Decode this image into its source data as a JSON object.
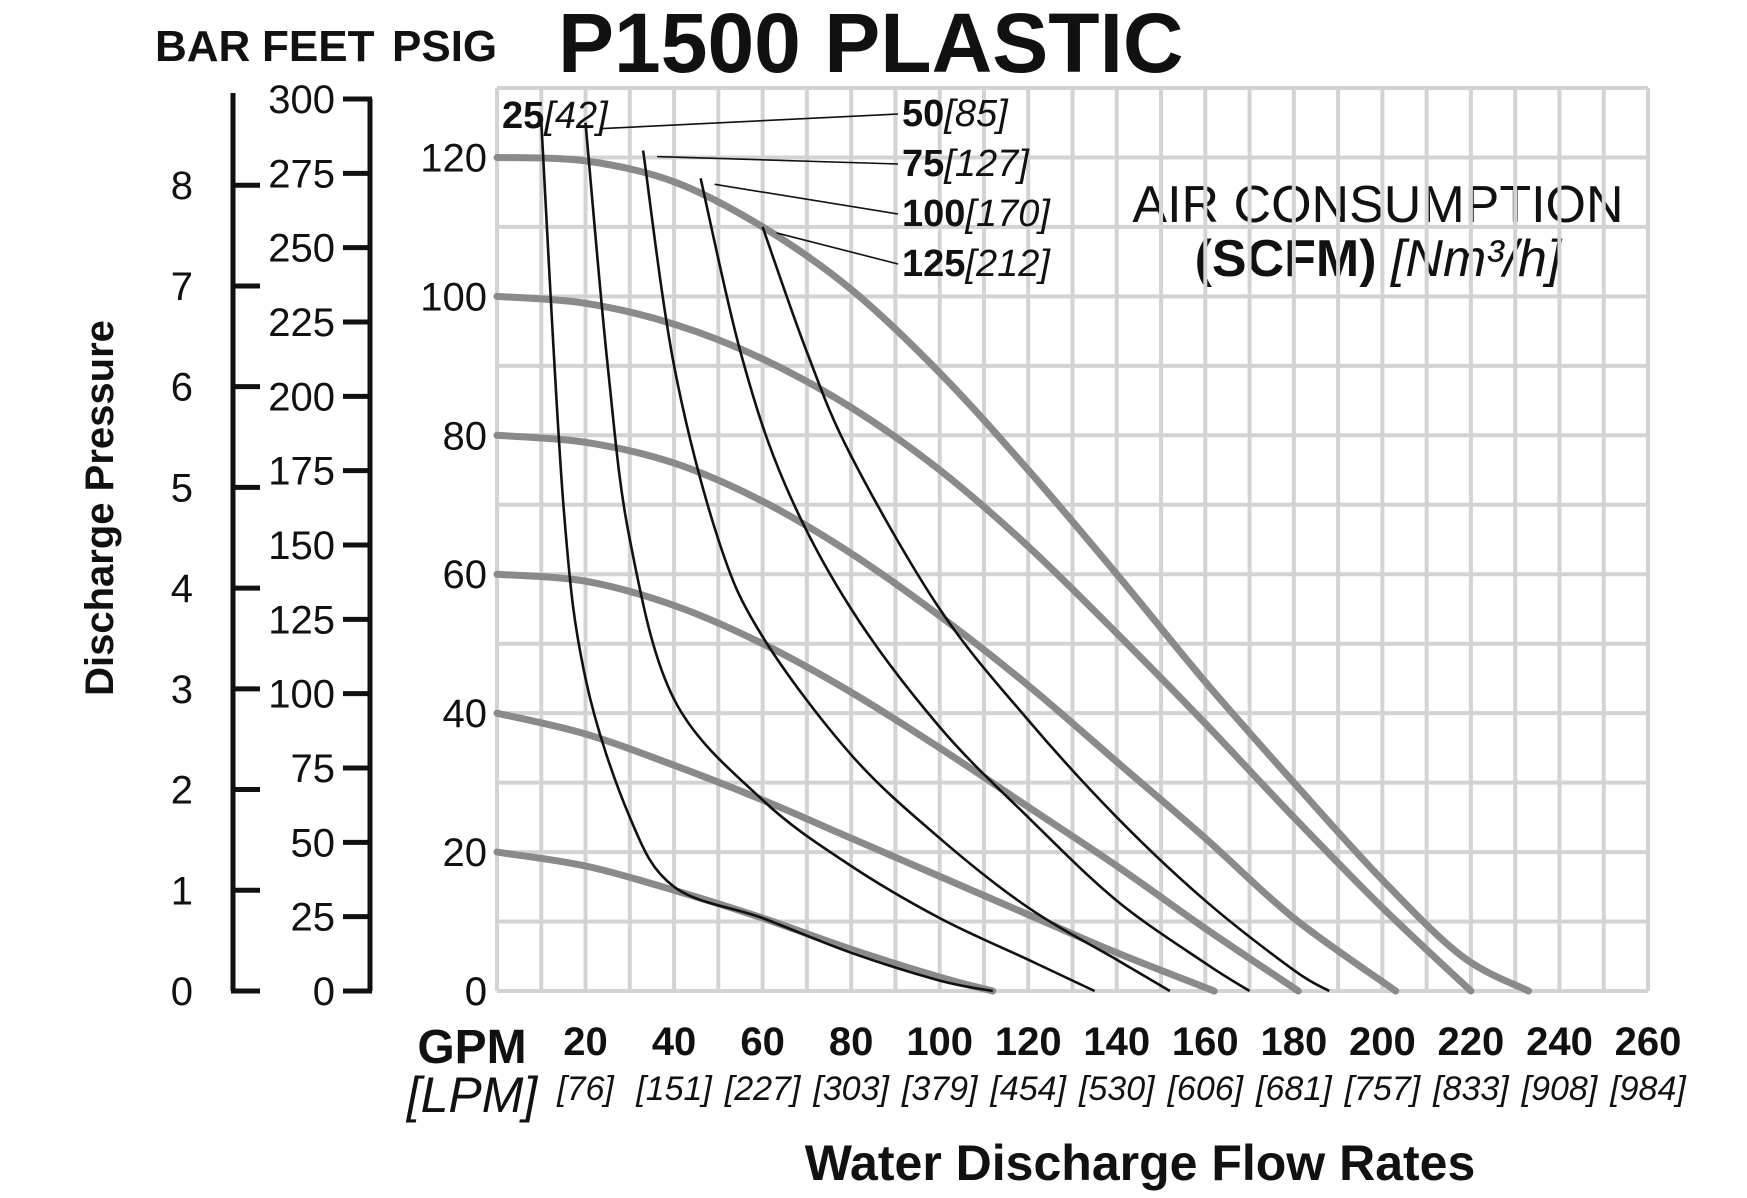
{
  "chart_data": {
    "type": "line",
    "title": "P1500 PLASTIC",
    "xlabel": "Water Discharge Flow Rates",
    "ylabel": "Discharge Pressure",
    "x_unit": "GPM",
    "x_unit_alt": "[LPM]",
    "xlim": [
      0,
      260
    ],
    "ylim": [
      0,
      130
    ],
    "x_ticks": [
      {
        "gpm": "20",
        "lpm": "[76]"
      },
      {
        "gpm": "40",
        "lpm": "[151]"
      },
      {
        "gpm": "60",
        "lpm": "[227]"
      },
      {
        "gpm": "80",
        "lpm": "[303]"
      },
      {
        "gpm": "100",
        "lpm": "[379]"
      },
      {
        "gpm": "120",
        "lpm": "[454]"
      },
      {
        "gpm": "140",
        "lpm": "[530]"
      },
      {
        "gpm": "160",
        "lpm": "[606]"
      },
      {
        "gpm": "180",
        "lpm": "[681]"
      },
      {
        "gpm": "200",
        "lpm": "[757]"
      },
      {
        "gpm": "220",
        "lpm": "[833]"
      },
      {
        "gpm": "240",
        "lpm": "[908]"
      },
      {
        "gpm": "260",
        "lpm": "[984]"
      }
    ],
    "psig_ticks": [
      "0",
      "20",
      "40",
      "60",
      "80",
      "100",
      "120"
    ],
    "feet_axis": {
      "label": "FEET",
      "ticks": [
        "0",
        "25",
        "50",
        "75",
        "100",
        "125",
        "150",
        "175",
        "200",
        "225",
        "250",
        "275",
        "300"
      ]
    },
    "bar_axis": {
      "label": "BAR",
      "ticks": [
        "0",
        "1",
        "2",
        "3",
        "4",
        "5",
        "6",
        "7",
        "8"
      ]
    },
    "psig_label": "PSIG",
    "grid": true,
    "performance_curves": {
      "description_label": "",
      "series": [
        {
          "inlet_psig": 20,
          "points": [
            [
              0,
              20
            ],
            [
              20,
              18
            ],
            [
              40,
              14.5
            ],
            [
              60,
              10.5
            ],
            [
              80,
              6
            ],
            [
              100,
              2
            ],
            [
              112,
              0
            ]
          ]
        },
        {
          "inlet_psig": 40,
          "points": [
            [
              0,
              40
            ],
            [
              20,
              37
            ],
            [
              40,
              32.5
            ],
            [
              60,
              27.5
            ],
            [
              80,
              22
            ],
            [
              100,
              16.5
            ],
            [
              120,
              11
            ],
            [
              140,
              5.5
            ],
            [
              162,
              0
            ]
          ]
        },
        {
          "inlet_psig": 60,
          "points": [
            [
              0,
              60
            ],
            [
              20,
              59
            ],
            [
              40,
              55.5
            ],
            [
              60,
              50
            ],
            [
              80,
              43
            ],
            [
              100,
              35
            ],
            [
              120,
              26.5
            ],
            [
              140,
              18
            ],
            [
              160,
              9
            ],
            [
              181,
              0
            ]
          ]
        },
        {
          "inlet_psig": 80,
          "points": [
            [
              0,
              80
            ],
            [
              20,
              79
            ],
            [
              40,
              76
            ],
            [
              60,
              70.5
            ],
            [
              80,
              63
            ],
            [
              100,
              54
            ],
            [
              120,
              44
            ],
            [
              140,
              33
            ],
            [
              160,
              22
            ],
            [
              180,
              10.5
            ],
            [
              203,
              0
            ]
          ]
        },
        {
          "inlet_psig": 100,
          "points": [
            [
              0,
              100
            ],
            [
              20,
              99
            ],
            [
              40,
              96
            ],
            [
              60,
              91
            ],
            [
              80,
              84
            ],
            [
              100,
              75
            ],
            [
              120,
              64
            ],
            [
              140,
              51.5
            ],
            [
              160,
              38.5
            ],
            [
              180,
              25
            ],
            [
              200,
              12
            ],
            [
              220,
              0
            ]
          ]
        },
        {
          "inlet_psig": 120,
          "points": [
            [
              0,
              120
            ],
            [
              20,
              119.5
            ],
            [
              40,
              116.5
            ],
            [
              60,
              110
            ],
            [
              80,
              101
            ],
            [
              100,
              89
            ],
            [
              120,
              75
            ],
            [
              140,
              60
            ],
            [
              160,
              44.5
            ],
            [
              180,
              30
            ],
            [
              200,
              16
            ],
            [
              218,
              5
            ],
            [
              233,
              0
            ]
          ]
        }
      ]
    },
    "air_consumption": {
      "title": "AIR CONSUMPTION",
      "subtitle_bold": "(SCFM)",
      "subtitle_italic": "[Nm³/h]",
      "series": [
        {
          "scfm": "25",
          "nm3h": "[42]",
          "points": [
            [
              10,
              125
            ],
            [
              15,
              70
            ],
            [
              20,
              45
            ],
            [
              30,
              25
            ],
            [
              40,
              15
            ],
            [
              60,
              10.5
            ],
            [
              80,
              5.5
            ],
            [
              100,
              1.5
            ],
            [
              112,
              0
            ]
          ]
        },
        {
          "scfm": "50",
          "nm3h": "[85]",
          "points": [
            [
              20,
              125
            ],
            [
              25,
              90
            ],
            [
              30,
              65
            ],
            [
              40,
              42
            ],
            [
              60,
              27.5
            ],
            [
              80,
              18
            ],
            [
              100,
              10.5
            ],
            [
              120,
              4.5
            ],
            [
              135,
              0
            ]
          ]
        },
        {
          "scfm": "75",
          "nm3h": "[127]",
          "points": [
            [
              33,
              121
            ],
            [
              40,
              90
            ],
            [
              50,
              65
            ],
            [
              60,
              51
            ],
            [
              80,
              34
            ],
            [
              100,
              22
            ],
            [
              120,
              12
            ],
            [
              140,
              4.5
            ],
            [
              152,
              0
            ]
          ]
        },
        {
          "scfm": "100",
          "nm3h": "[170]",
          "points": [
            [
              46,
              117
            ],
            [
              55,
              92
            ],
            [
              65,
              73
            ],
            [
              80,
              55
            ],
            [
              100,
              38
            ],
            [
              120,
              25
            ],
            [
              140,
              13
            ],
            [
              160,
              4
            ],
            [
              170,
              0
            ]
          ]
        },
        {
          "scfm": "125",
          "nm3h": "[212]",
          "points": [
            [
              60,
              110
            ],
            [
              70,
              92
            ],
            [
              80,
              77
            ],
            [
              100,
              55
            ],
            [
              120,
              39
            ],
            [
              140,
              25
            ],
            [
              160,
              13
            ],
            [
              180,
              3
            ],
            [
              188,
              0
            ]
          ]
        }
      ]
    }
  }
}
